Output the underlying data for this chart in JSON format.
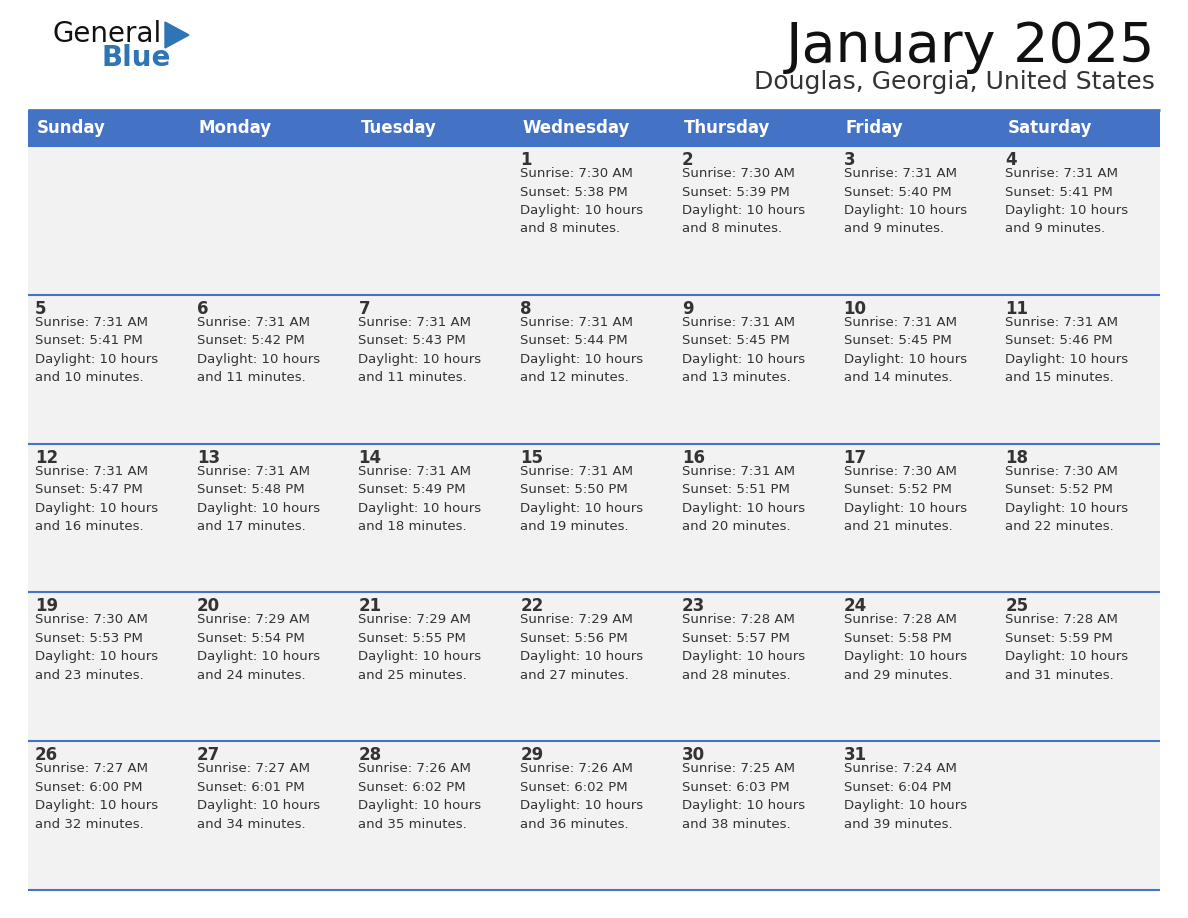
{
  "title": "January 2025",
  "subtitle": "Douglas, Georgia, United States",
  "header_color": "#4472C4",
  "header_text_color": "#FFFFFF",
  "cell_bg": "#F2F2F2",
  "row_line_color": "#4472C4",
  "text_color": "#333333",
  "day_names": [
    "Sunday",
    "Monday",
    "Tuesday",
    "Wednesday",
    "Thursday",
    "Friday",
    "Saturday"
  ],
  "weeks": [
    [
      {
        "day": "",
        "info": ""
      },
      {
        "day": "",
        "info": ""
      },
      {
        "day": "",
        "info": ""
      },
      {
        "day": "1",
        "info": "Sunrise: 7:30 AM\nSunset: 5:38 PM\nDaylight: 10 hours\nand 8 minutes."
      },
      {
        "day": "2",
        "info": "Sunrise: 7:30 AM\nSunset: 5:39 PM\nDaylight: 10 hours\nand 8 minutes."
      },
      {
        "day": "3",
        "info": "Sunrise: 7:31 AM\nSunset: 5:40 PM\nDaylight: 10 hours\nand 9 minutes."
      },
      {
        "day": "4",
        "info": "Sunrise: 7:31 AM\nSunset: 5:41 PM\nDaylight: 10 hours\nand 9 minutes."
      }
    ],
    [
      {
        "day": "5",
        "info": "Sunrise: 7:31 AM\nSunset: 5:41 PM\nDaylight: 10 hours\nand 10 minutes."
      },
      {
        "day": "6",
        "info": "Sunrise: 7:31 AM\nSunset: 5:42 PM\nDaylight: 10 hours\nand 11 minutes."
      },
      {
        "day": "7",
        "info": "Sunrise: 7:31 AM\nSunset: 5:43 PM\nDaylight: 10 hours\nand 11 minutes."
      },
      {
        "day": "8",
        "info": "Sunrise: 7:31 AM\nSunset: 5:44 PM\nDaylight: 10 hours\nand 12 minutes."
      },
      {
        "day": "9",
        "info": "Sunrise: 7:31 AM\nSunset: 5:45 PM\nDaylight: 10 hours\nand 13 minutes."
      },
      {
        "day": "10",
        "info": "Sunrise: 7:31 AM\nSunset: 5:45 PM\nDaylight: 10 hours\nand 14 minutes."
      },
      {
        "day": "11",
        "info": "Sunrise: 7:31 AM\nSunset: 5:46 PM\nDaylight: 10 hours\nand 15 minutes."
      }
    ],
    [
      {
        "day": "12",
        "info": "Sunrise: 7:31 AM\nSunset: 5:47 PM\nDaylight: 10 hours\nand 16 minutes."
      },
      {
        "day": "13",
        "info": "Sunrise: 7:31 AM\nSunset: 5:48 PM\nDaylight: 10 hours\nand 17 minutes."
      },
      {
        "day": "14",
        "info": "Sunrise: 7:31 AM\nSunset: 5:49 PM\nDaylight: 10 hours\nand 18 minutes."
      },
      {
        "day": "15",
        "info": "Sunrise: 7:31 AM\nSunset: 5:50 PM\nDaylight: 10 hours\nand 19 minutes."
      },
      {
        "day": "16",
        "info": "Sunrise: 7:31 AM\nSunset: 5:51 PM\nDaylight: 10 hours\nand 20 minutes."
      },
      {
        "day": "17",
        "info": "Sunrise: 7:30 AM\nSunset: 5:52 PM\nDaylight: 10 hours\nand 21 minutes."
      },
      {
        "day": "18",
        "info": "Sunrise: 7:30 AM\nSunset: 5:52 PM\nDaylight: 10 hours\nand 22 minutes."
      }
    ],
    [
      {
        "day": "19",
        "info": "Sunrise: 7:30 AM\nSunset: 5:53 PM\nDaylight: 10 hours\nand 23 minutes."
      },
      {
        "day": "20",
        "info": "Sunrise: 7:29 AM\nSunset: 5:54 PM\nDaylight: 10 hours\nand 24 minutes."
      },
      {
        "day": "21",
        "info": "Sunrise: 7:29 AM\nSunset: 5:55 PM\nDaylight: 10 hours\nand 25 minutes."
      },
      {
        "day": "22",
        "info": "Sunrise: 7:29 AM\nSunset: 5:56 PM\nDaylight: 10 hours\nand 27 minutes."
      },
      {
        "day": "23",
        "info": "Sunrise: 7:28 AM\nSunset: 5:57 PM\nDaylight: 10 hours\nand 28 minutes."
      },
      {
        "day": "24",
        "info": "Sunrise: 7:28 AM\nSunset: 5:58 PM\nDaylight: 10 hours\nand 29 minutes."
      },
      {
        "day": "25",
        "info": "Sunrise: 7:28 AM\nSunset: 5:59 PM\nDaylight: 10 hours\nand 31 minutes."
      }
    ],
    [
      {
        "day": "26",
        "info": "Sunrise: 7:27 AM\nSunset: 6:00 PM\nDaylight: 10 hours\nand 32 minutes."
      },
      {
        "day": "27",
        "info": "Sunrise: 7:27 AM\nSunset: 6:01 PM\nDaylight: 10 hours\nand 34 minutes."
      },
      {
        "day": "28",
        "info": "Sunrise: 7:26 AM\nSunset: 6:02 PM\nDaylight: 10 hours\nand 35 minutes."
      },
      {
        "day": "29",
        "info": "Sunrise: 7:26 AM\nSunset: 6:02 PM\nDaylight: 10 hours\nand 36 minutes."
      },
      {
        "day": "30",
        "info": "Sunrise: 7:25 AM\nSunset: 6:03 PM\nDaylight: 10 hours\nand 38 minutes."
      },
      {
        "day": "31",
        "info": "Sunrise: 7:24 AM\nSunset: 6:04 PM\nDaylight: 10 hours\nand 39 minutes."
      },
      {
        "day": "",
        "info": ""
      }
    ]
  ]
}
